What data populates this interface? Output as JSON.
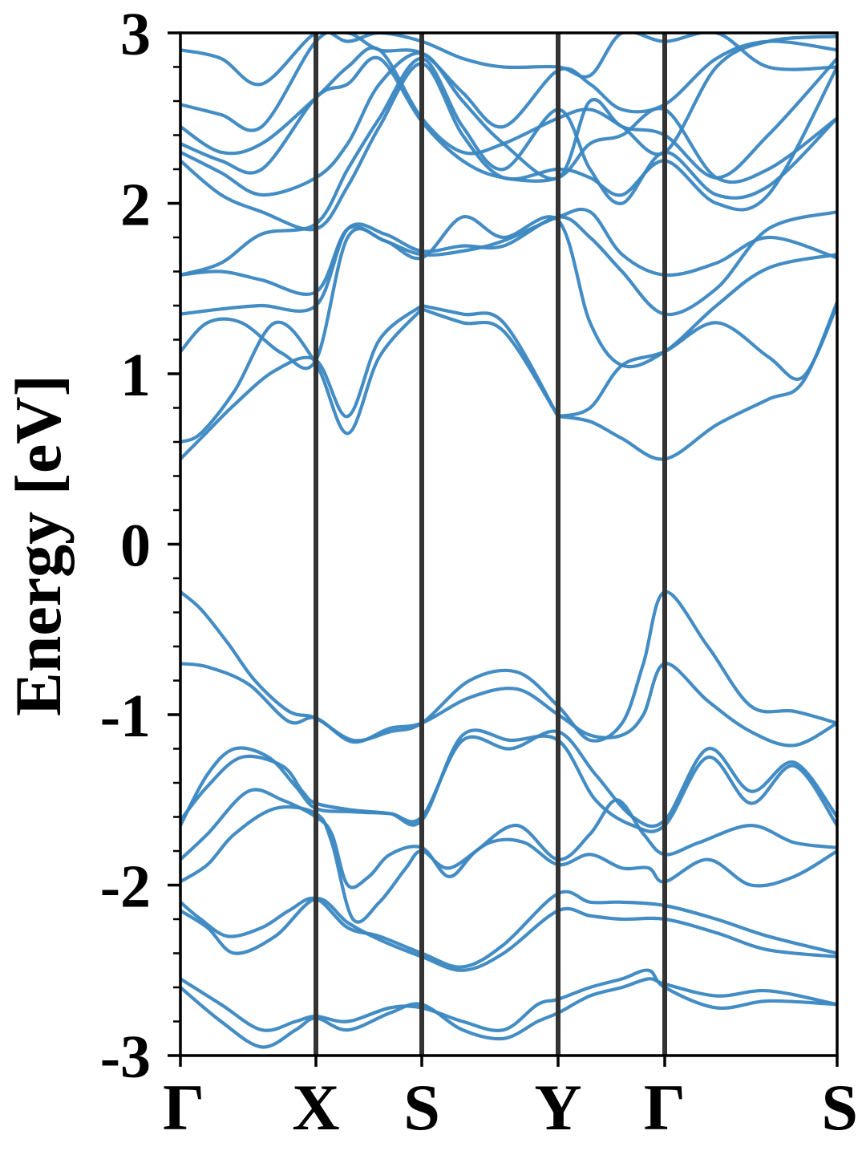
{
  "chart_data": {
    "type": "line",
    "title": "",
    "xlabel": "",
    "ylabel": "Energy [eV]",
    "ylim": [
      -3,
      3
    ],
    "yticks": [
      "-3",
      "-2",
      "-1",
      "0",
      "1",
      "2",
      "3"
    ],
    "minor_ytick_step": 0.2,
    "grid": false,
    "band_color": "#3a87c1",
    "kline_color": "#333333",
    "x_unit": "path segment index (k-point labels at integers 0..5)",
    "kpoints": [
      {
        "label": "Γ",
        "x": 0
      },
      {
        "label": "X",
        "x": 1
      },
      {
        "label": "S",
        "x": 2
      },
      {
        "label": "Y",
        "x": 3
      },
      {
        "label": "Γ",
        "x": 4
      },
      {
        "label": "S",
        "x": 5
      }
    ],
    "series": [
      {
        "x": [
          0,
          0.15,
          0.35,
          0.55,
          0.8,
          1,
          1.35,
          1.7,
          2,
          2.35,
          2.7,
          3,
          3.3,
          3.6,
          3.8,
          4,
          4.25,
          4.5,
          4.75,
          5
        ],
        "values": [
          -0.28,
          -0.38,
          -0.58,
          -0.8,
          -0.98,
          -1.02,
          -1.15,
          -1.1,
          -1.05,
          -0.8,
          -0.75,
          -0.95,
          -1.15,
          -1.05,
          -0.7,
          -0.28,
          -0.6,
          -0.95,
          -0.98,
          -1.05
        ]
      },
      {
        "x": [
          0,
          0.2,
          0.5,
          0.8,
          1,
          1.35,
          1.7,
          2,
          2.35,
          2.7,
          3,
          3.3,
          3.6,
          3.8,
          4,
          4.25,
          4.5,
          4.75,
          5
        ],
        "values": [
          -0.7,
          -0.72,
          -0.82,
          -1.04,
          -1.02,
          -1.16,
          -1.08,
          -1.05,
          -0.9,
          -0.85,
          -1.0,
          -1.12,
          -1.12,
          -1.0,
          -0.7,
          -0.92,
          -1.1,
          -1.18,
          -1.05
        ]
      },
      {
        "x": [
          0,
          0.2,
          0.4,
          0.65,
          0.85,
          1,
          1.35,
          1.7,
          2,
          2.3,
          2.65,
          3,
          3.35,
          3.7,
          4,
          4.25,
          4.5,
          4.75,
          5
        ],
        "values": [
          -1.65,
          -1.35,
          -1.2,
          -1.25,
          -1.42,
          -1.55,
          -1.57,
          -1.58,
          -1.6,
          -1.15,
          -1.2,
          -1.1,
          -1.35,
          -1.6,
          -1.62,
          -1.2,
          -1.45,
          -1.28,
          -1.6
        ]
      },
      {
        "x": [
          0,
          0.2,
          0.45,
          0.75,
          0.9,
          1,
          1.35,
          1.7,
          2,
          2.3,
          2.65,
          3,
          3.35,
          3.7,
          4,
          4.25,
          4.5,
          4.75,
          5
        ],
        "values": [
          -1.62,
          -1.42,
          -1.25,
          -1.3,
          -1.45,
          -1.52,
          -1.56,
          -1.58,
          -1.62,
          -1.12,
          -1.15,
          -1.15,
          -1.5,
          -1.65,
          -1.65,
          -1.25,
          -1.52,
          -1.3,
          -1.65
        ]
      },
      {
        "x": [
          0,
          0.2,
          0.5,
          0.75,
          1,
          1.15,
          1.3,
          1.5,
          1.7,
          2,
          2.2,
          2.4,
          2.7,
          3,
          3.3,
          3.55,
          3.8,
          4,
          4.2,
          4.5,
          4.75,
          5
        ],
        "values": [
          -1.85,
          -1.7,
          -1.45,
          -1.5,
          -1.6,
          -1.7,
          -2.0,
          -1.95,
          -1.82,
          -1.78,
          -1.95,
          -1.8,
          -1.65,
          -1.85,
          -1.7,
          -1.5,
          -1.7,
          -1.82,
          -1.75,
          -1.65,
          -1.75,
          -1.78
        ]
      },
      {
        "x": [
          0,
          0.2,
          0.4,
          0.7,
          1,
          1.15,
          1.35,
          1.6,
          1.85,
          2,
          2.2,
          2.5,
          2.75,
          3,
          3.3,
          3.6,
          3.85,
          4,
          4.25,
          4.5,
          4.75,
          5
        ],
        "values": [
          -1.98,
          -1.88,
          -1.7,
          -1.55,
          -1.58,
          -1.75,
          -2.2,
          -2.1,
          -1.9,
          -1.8,
          -1.9,
          -1.75,
          -1.75,
          -1.88,
          -1.82,
          -1.9,
          -1.9,
          -1.98,
          -1.85,
          -2.0,
          -1.95,
          -1.8
        ]
      },
      {
        "x": [
          0,
          0.15,
          0.35,
          0.6,
          0.8,
          1,
          1.3,
          1.6,
          2,
          2.3,
          2.6,
          3,
          3.3,
          3.6,
          4,
          4.3,
          4.6,
          5
        ],
        "values": [
          -2.1,
          -2.2,
          -2.3,
          -2.25,
          -2.15,
          -2.08,
          -2.25,
          -2.3,
          -2.4,
          -2.48,
          -2.35,
          -2.05,
          -2.1,
          -2.1,
          -2.12,
          -2.2,
          -2.3,
          -2.4
        ]
      },
      {
        "x": [
          0,
          0.2,
          0.4,
          0.7,
          1,
          1.3,
          1.6,
          2,
          2.3,
          2.6,
          3,
          3.3,
          3.6,
          4,
          4.3,
          4.6,
          5
        ],
        "values": [
          -2.15,
          -2.25,
          -2.4,
          -2.3,
          -2.08,
          -2.22,
          -2.32,
          -2.42,
          -2.5,
          -2.4,
          -2.15,
          -2.18,
          -2.2,
          -2.2,
          -2.28,
          -2.38,
          -2.42
        ]
      },
      {
        "x": [
          0,
          0.3,
          0.6,
          0.85,
          1,
          1.3,
          1.7,
          2,
          2.3,
          2.6,
          2.85,
          3,
          3.3,
          3.6,
          3.85,
          4,
          4.3,
          4.6,
          5
        ],
        "values": [
          -2.55,
          -2.7,
          -2.85,
          -2.8,
          -2.77,
          -2.8,
          -2.72,
          -2.72,
          -2.8,
          -2.85,
          -2.7,
          -2.67,
          -2.6,
          -2.55,
          -2.5,
          -2.6,
          -2.72,
          -2.68,
          -2.7
        ]
      },
      {
        "x": [
          0,
          0.3,
          0.6,
          0.85,
          1,
          1.3,
          1.7,
          2,
          2.3,
          2.6,
          2.85,
          3,
          3.3,
          3.6,
          3.85,
          4,
          4.3,
          4.6,
          5
        ],
        "values": [
          -2.6,
          -2.8,
          -2.95,
          -2.85,
          -2.78,
          -2.85,
          -2.75,
          -2.7,
          -2.85,
          -2.9,
          -2.8,
          -2.75,
          -2.65,
          -2.6,
          -2.55,
          -2.58,
          -2.65,
          -2.62,
          -2.7
        ]
      },
      {
        "x": [
          0,
          0.15,
          0.4,
          0.7,
          1,
          1.3,
          1.6,
          2
        ],
        "values": [
          0.5,
          0.62,
          0.82,
          1.02,
          1.08,
          0.75,
          1.2,
          1.4
        ]
      },
      {
        "x": [
          0,
          0.15,
          0.4,
          0.7,
          1,
          1.3,
          1.6,
          2
        ],
        "values": [
          0.6,
          0.65,
          0.9,
          1.3,
          1.06,
          0.65,
          1.1,
          1.38
        ]
      },
      {
        "x": [
          2,
          2.3,
          2.6,
          3
        ],
        "values": [
          1.4,
          1.35,
          1.3,
          0.75
        ]
      },
      {
        "x": [
          2,
          2.3,
          2.6,
          3
        ],
        "values": [
          1.38,
          1.3,
          1.25,
          0.75
        ]
      },
      {
        "x": [
          3,
          3.3,
          3.6,
          4,
          4.3,
          4.6,
          4.8,
          5
        ],
        "values": [
          0.75,
          0.8,
          1.05,
          1.13,
          1.3,
          1.1,
          0.98,
          1.4
        ]
      },
      {
        "x": [
          3,
          3.3,
          3.6,
          4,
          4.3,
          4.6,
          4.8,
          5
        ],
        "values": [
          0.75,
          0.72,
          0.62,
          0.5,
          0.7,
          0.85,
          0.95,
          1.42
        ]
      },
      {
        "x": [
          0,
          0.2,
          0.45,
          0.75,
          1,
          1.3,
          1.65,
          2,
          2.3,
          2.6,
          3,
          3.3,
          3.6,
          4,
          4.3,
          4.6,
          5
        ],
        "values": [
          1.13,
          1.3,
          1.3,
          1.12,
          1.08,
          1.8,
          1.78,
          1.68,
          1.92,
          1.8,
          1.9,
          1.3,
          1.05,
          1.13,
          1.4,
          1.62,
          1.7
        ]
      },
      {
        "x": [
          0,
          0.3,
          0.6,
          1,
          1.3,
          1.65,
          2,
          2.3,
          2.6,
          3,
          3.3,
          3.6,
          4,
          4.3,
          4.6,
          5
        ],
        "values": [
          1.35,
          1.38,
          1.4,
          1.4,
          1.85,
          1.82,
          1.72,
          1.75,
          1.75,
          1.92,
          1.8,
          1.6,
          1.35,
          1.5,
          1.85,
          1.95
        ]
      },
      {
        "x": [
          0,
          0.3,
          0.6,
          1,
          1.3,
          1.65,
          2,
          2.3,
          2.6,
          3,
          3.3,
          3.6,
          4,
          4.3,
          4.6,
          5
        ],
        "values": [
          1.58,
          1.6,
          1.55,
          1.48,
          1.85,
          1.78,
          1.7,
          1.72,
          1.78,
          1.92,
          1.95,
          1.7,
          1.58,
          1.65,
          1.8,
          1.68
        ]
      },
      {
        "x": [
          0,
          0.3,
          0.6,
          1,
          1.3,
          1.6,
          2,
          2.3,
          2.6,
          3,
          3.3,
          3.6,
          4,
          4.3,
          4.6,
          5
        ],
        "values": [
          1.58,
          1.65,
          1.82,
          1.88,
          2.2,
          2.5,
          2.85,
          2.45,
          2.2,
          2.55,
          2.2,
          2.0,
          2.3,
          2.05,
          2.1,
          2.5
        ]
      },
      {
        "x": [
          0,
          0.3,
          0.6,
          1,
          1.3,
          1.6,
          2,
          2.3,
          2.6,
          3,
          3.3,
          3.6,
          4,
          4.3,
          4.6,
          5
        ],
        "values": [
          2.25,
          2.05,
          1.95,
          1.85,
          2.1,
          2.45,
          2.82,
          2.4,
          2.15,
          2.2,
          2.15,
          2.05,
          2.25,
          2.0,
          2.05,
          2.8
        ]
      },
      {
        "x": [
          0,
          0.3,
          0.6,
          1,
          1.3,
          1.6,
          2,
          2.3,
          2.6,
          3,
          3.3,
          3.6,
          4,
          4.3,
          4.6,
          5
        ],
        "values": [
          2.3,
          2.18,
          2.05,
          2.15,
          2.35,
          2.7,
          2.88,
          2.6,
          2.35,
          2.15,
          2.6,
          2.45,
          2.4,
          2.15,
          2.4,
          2.85
        ]
      },
      {
        "x": [
          0,
          0.3,
          0.6,
          1,
          1.3,
          1.6,
          2,
          2.3,
          2.6,
          3,
          3.3,
          3.6,
          4,
          4.3,
          4.6,
          5
        ],
        "values": [
          2.35,
          2.25,
          2.2,
          2.62,
          2.7,
          2.85,
          2.48,
          2.25,
          2.15,
          2.15,
          2.35,
          2.4,
          2.55,
          2.15,
          2.2,
          2.5
        ]
      },
      {
        "x": [
          0,
          0.3,
          0.6,
          1,
          1.3,
          1.6,
          2,
          2.3,
          2.6,
          3,
          3.3,
          3.6,
          4,
          4.3,
          4.6,
          5
        ],
        "values": [
          2.45,
          2.3,
          2.35,
          2.62,
          2.8,
          2.9,
          2.5,
          2.3,
          2.35,
          2.5,
          2.55,
          2.45,
          2.3,
          2.8,
          2.95,
          2.98
        ]
      },
      {
        "x": [
          0,
          0.3,
          0.6,
          1,
          1.3,
          1.6,
          2,
          2.3,
          2.6,
          3,
          3.3,
          3.6,
          4,
          4.3,
          4.6,
          5
        ],
        "values": [
          2.58,
          2.52,
          2.45,
          2.95,
          3.0,
          2.9,
          2.88,
          2.65,
          2.45,
          2.78,
          2.7,
          2.55,
          2.58,
          2.85,
          2.95,
          2.9
        ]
      },
      {
        "x": [
          0,
          0.3,
          0.6,
          1,
          1.3,
          1.6,
          2,
          2.3,
          2.6,
          3,
          3.3,
          3.6,
          4,
          4.3,
          4.6,
          5
        ],
        "values": [
          2.9,
          2.85,
          2.7,
          3.0,
          2.95,
          3.0,
          2.95,
          2.85,
          2.8,
          2.8,
          2.75,
          3.0,
          2.95,
          3.0,
          2.8,
          2.8
        ]
      }
    ]
  }
}
